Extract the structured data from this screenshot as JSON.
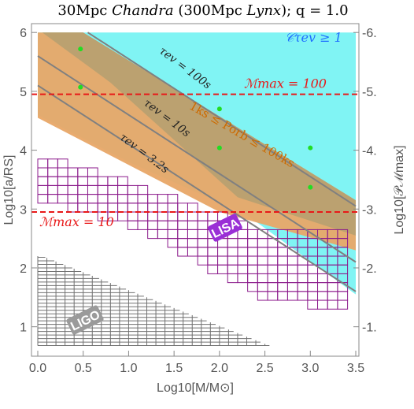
{
  "chart_data": {
    "type": "area",
    "title": "30Mpc Chandra (300Mpc Lynx);  q = 1.0",
    "title_parts": {
      "a": "30Mpc ",
      "b": "Chandra",
      "c": " (300Mpc ",
      "d": "Lynx",
      "e": ");  q = 1.0"
    },
    "xlabel": "Log10[M/M⊙]",
    "ylabel": "Log10[a/RS]",
    "y2label": "Log10[𝒫ℳmax]",
    "xlim": [
      0,
      3.5
    ],
    "ylim": [
      0.5,
      6.15
    ],
    "x_ticks": [
      0.0,
      0.5,
      1.0,
      1.5,
      2.0,
      2.5,
      3.0,
      3.5
    ],
    "x_tick_labels": [
      "0.0",
      "0.5",
      "1.0",
      "1.5",
      "2.0",
      "2.5",
      "3.0",
      "3.5"
    ],
    "y_ticks": [
      1,
      2,
      3,
      4,
      5,
      6
    ],
    "y_tick_labels": [
      "1",
      "2",
      "3",
      "4",
      "5",
      "6"
    ],
    "y2_ticks": [
      1,
      2,
      3,
      4,
      5,
      6
    ],
    "y2_tick_labels": [
      "-1.",
      "-2.",
      "-3.",
      "-4.",
      "-5.",
      "-6."
    ],
    "regions": [
      {
        "name": "Cτev ≥ 1",
        "color": "#80f4f4",
        "label": "𝒞τev ≥ 1"
      },
      {
        "name": "1ks ≤ Porb ≤ 100ks",
        "color": "#e8a767",
        "label": "1ks ≤ Porb ≤ 100ks"
      },
      {
        "name": "LISA",
        "color": "#8b1a8b",
        "label": "LISA"
      },
      {
        "name": "LIGO",
        "color": "#707070",
        "label": "LIGO"
      }
    ],
    "lines": [
      {
        "label": "τev = 100s",
        "color": "#808080",
        "x": [
          0.55,
          3.5
        ],
        "y": [
          6.0,
          3.05
        ]
      },
      {
        "label": "τev = 10s",
        "color": "#808080",
        "x": [
          0.0,
          3.5
        ],
        "y": [
          5.6,
          2.1
        ]
      },
      {
        "label": "τev = 3.2s",
        "color": "#808080",
        "x": [
          0.0,
          3.5
        ],
        "y": [
          5.1,
          1.6
        ]
      }
    ],
    "hlines": [
      {
        "label": "ℳmax = 100",
        "y": 4.95,
        "color": "#e81818"
      },
      {
        "label": "ℳmax = 10",
        "y": 2.95,
        "color": "#e81818"
      }
    ],
    "points": {
      "color": "#22dd22",
      "x": [
        0.47,
        0.47,
        2.0,
        2.0,
        3.0,
        3.0
      ],
      "y": [
        5.72,
        5.07,
        4.7,
        4.04,
        4.04,
        3.37
      ]
    },
    "grid": false,
    "region_labels": {
      "ctau": "𝒞τev ≥ 1",
      "porb": "1ks ≤ Porb ≤ 100ks",
      "lisa": "LISA",
      "ligo": "LIGO"
    }
  }
}
